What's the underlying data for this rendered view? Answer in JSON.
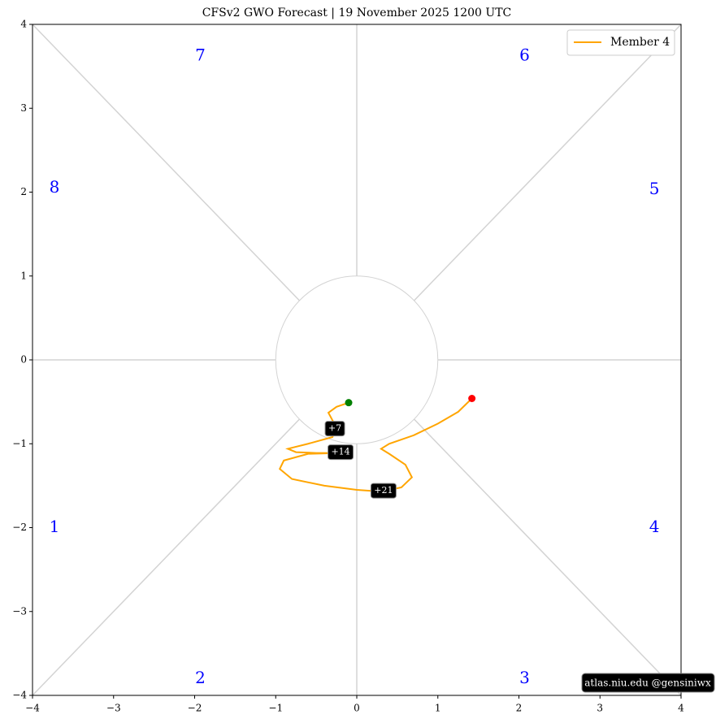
{
  "chart_data": {
    "type": "line",
    "title": "CFSv2 GWO Forecast   |   19  November  2025 1200 UTC",
    "xlim": [
      -4,
      4
    ],
    "ylim": [
      -4,
      4
    ],
    "xticks": [
      {
        "value": -4,
        "label": "−4"
      },
      {
        "value": -3,
        "label": "−3"
      },
      {
        "value": -2,
        "label": "−2"
      },
      {
        "value": -1,
        "label": "−1"
      },
      0,
      1,
      2,
      3,
      4
    ],
    "yticks": [
      {
        "value": -4,
        "label": "−4"
      },
      {
        "value": -3,
        "label": "−3"
      },
      {
        "value": -2,
        "label": "−2"
      },
      {
        "value": -1,
        "label": "−1"
      },
      0,
      1,
      2,
      3,
      4
    ],
    "series": [
      {
        "name": "Member 4",
        "color": "orange",
        "x": [
          -0.1,
          -0.25,
          -0.35,
          -0.3,
          -0.25,
          -0.3,
          -0.6,
          -0.85,
          -0.75,
          -0.5,
          -0.2,
          -0.6,
          -0.9,
          -0.95,
          -0.8,
          -0.4,
          0.0,
          0.3,
          0.55,
          0.68,
          0.6,
          0.4,
          0.3,
          0.4,
          0.7,
          1.0,
          1.25,
          1.42
        ],
        "y": [
          -0.51,
          -0.56,
          -0.63,
          -0.72,
          -0.8,
          -0.92,
          -1.0,
          -1.06,
          -1.1,
          -1.11,
          -1.11,
          -1.12,
          -1.2,
          -1.3,
          -1.42,
          -1.5,
          -1.55,
          -1.57,
          -1.52,
          -1.4,
          -1.25,
          -1.12,
          -1.06,
          -1.0,
          -0.9,
          -0.76,
          -0.62,
          -0.46
        ]
      }
    ],
    "start_color": "green",
    "end_color": "red",
    "annotations": [
      "+7",
      "+14",
      "+21"
    ],
    "phase_labels": [
      "1",
      "2",
      "3",
      "4",
      "5",
      "6",
      "7",
      "8"
    ],
    "phase_color": "blue",
    "legend": "upper right",
    "watermark": "atlas.niu.edu  @gensiniwx"
  }
}
